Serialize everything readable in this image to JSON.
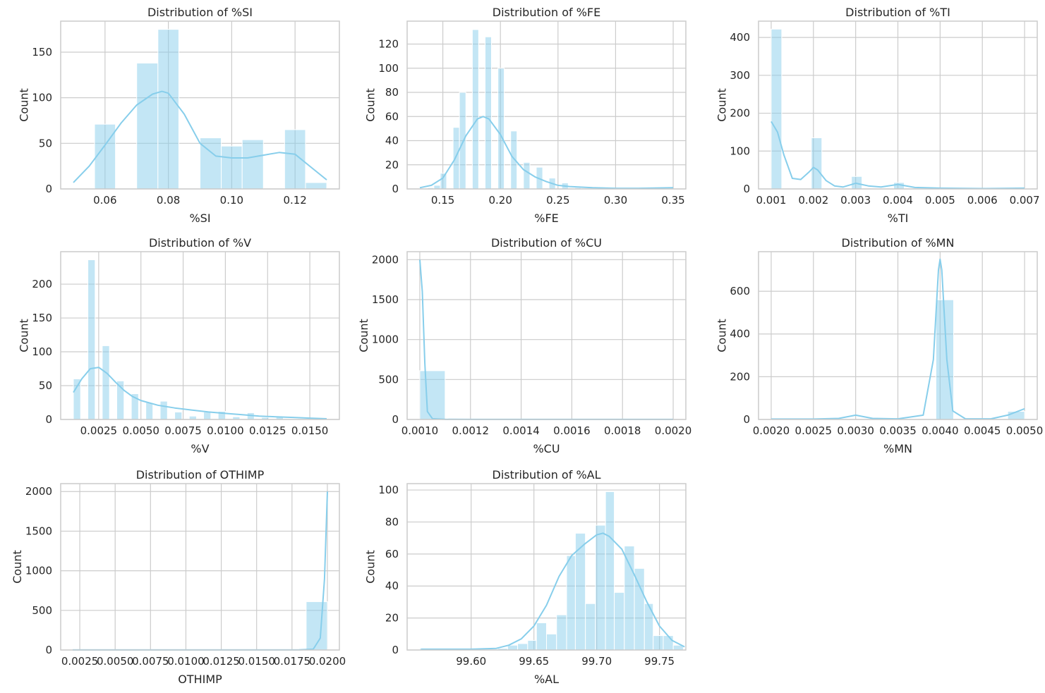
{
  "figure": {
    "bar_color": "#87ceeb",
    "bar_opacity": 0.5,
    "kde_color": "#87ceeb",
    "grid_color": "#cccccc",
    "text_color": "#262626",
    "grid": true
  },
  "chart_data": [
    {
      "type": "bar",
      "title": "Distribution of %SI",
      "xlabel": "%SI",
      "ylabel": "Count",
      "xlim": [
        0.046,
        0.134
      ],
      "ylim": [
        0,
        184
      ],
      "xticks": [
        0.06,
        0.08,
        0.1,
        0.12
      ],
      "xtick_labels": [
        "0.06",
        "0.08",
        "0.10",
        "0.12"
      ],
      "yticks": [
        0,
        50,
        100,
        150
      ],
      "bins": [
        {
          "x0": 0.0567,
          "x1": 0.0633,
          "count": 71
        },
        {
          "x0": 0.07,
          "x1": 0.0767,
          "count": 138
        },
        {
          "x0": 0.0767,
          "x1": 0.0833,
          "count": 175
        },
        {
          "x0": 0.09,
          "x1": 0.0967,
          "count": 56
        },
        {
          "x0": 0.0967,
          "x1": 0.1033,
          "count": 47
        },
        {
          "x0": 0.1033,
          "x1": 0.11,
          "count": 54
        },
        {
          "x0": 0.1167,
          "x1": 0.1233,
          "count": 65
        },
        {
          "x0": 0.1233,
          "x1": 0.13,
          "count": 7
        }
      ],
      "kde": {
        "x": [
          0.05,
          0.055,
          0.06,
          0.065,
          0.07,
          0.075,
          0.078,
          0.08,
          0.085,
          0.09,
          0.095,
          0.1,
          0.105,
          0.11,
          0.115,
          0.12,
          0.125,
          0.13
        ],
        "y": [
          7,
          25,
          48,
          72,
          92,
          104,
          107,
          105,
          82,
          50,
          36,
          34,
          34,
          37,
          40,
          38,
          24,
          10
        ]
      }
    },
    {
      "type": "bar",
      "title": "Distribution of %FE",
      "xlabel": "%FE",
      "ylabel": "Count",
      "xlim": [
        0.119,
        0.361
      ],
      "ylim": [
        0,
        139
      ],
      "xticks": [
        0.15,
        0.2,
        0.25,
        0.3,
        0.35
      ],
      "xtick_labels": [
        "0.15",
        "0.20",
        "0.25",
        "0.30",
        "0.35"
      ],
      "yticks": [
        0,
        20,
        40,
        60,
        80,
        100,
        120
      ],
      "bins": [
        {
          "x0": 0.1367,
          "x1": 0.1422,
          "count": 1
        },
        {
          "x0": 0.1422,
          "x1": 0.1478,
          "count": 3
        },
        {
          "x0": 0.1478,
          "x1": 0.1533,
          "count": 13
        },
        {
          "x0": 0.1589,
          "x1": 0.1644,
          "count": 51
        },
        {
          "x0": 0.1644,
          "x1": 0.17,
          "count": 80
        },
        {
          "x0": 0.1756,
          "x1": 0.1811,
          "count": 132
        },
        {
          "x0": 0.1867,
          "x1": 0.1922,
          "count": 126
        },
        {
          "x0": 0.1978,
          "x1": 0.2033,
          "count": 100
        },
        {
          "x0": 0.2089,
          "x1": 0.2144,
          "count": 48
        },
        {
          "x0": 0.22,
          "x1": 0.2256,
          "count": 22
        },
        {
          "x0": 0.2311,
          "x1": 0.2367,
          "count": 18
        },
        {
          "x0": 0.2422,
          "x1": 0.2478,
          "count": 9
        },
        {
          "x0": 0.2533,
          "x1": 0.2589,
          "count": 5
        },
        {
          "x0": 0.2644,
          "x1": 0.27,
          "count": 1
        }
      ],
      "kde": {
        "x": [
          0.13,
          0.14,
          0.15,
          0.16,
          0.17,
          0.18,
          0.185,
          0.19,
          0.2,
          0.21,
          0.22,
          0.23,
          0.24,
          0.25,
          0.26,
          0.28,
          0.3,
          0.32,
          0.35
        ],
        "y": [
          1,
          3,
          9,
          24,
          44,
          58,
          60,
          58,
          45,
          27,
          16,
          10,
          6,
          3,
          2,
          1,
          0.5,
          0.5,
          1
        ]
      }
    },
    {
      "type": "bar",
      "title": "Distribution of %TI",
      "xlabel": "%TI",
      "ylabel": "Count",
      "xlim": [
        0.0007,
        0.0073
      ],
      "ylim": [
        0,
        443
      ],
      "xticks": [
        0.001,
        0.002,
        0.003,
        0.004,
        0.005,
        0.006,
        0.007
      ],
      "xtick_labels": [
        "0.001",
        "0.002",
        "0.003",
        "0.004",
        "0.005",
        "0.006",
        "0.007"
      ],
      "yticks": [
        0,
        100,
        200,
        300,
        400
      ],
      "bins": [
        {
          "x0": 0.001,
          "x1": 0.00125,
          "count": 422
        },
        {
          "x0": 0.00195,
          "x1": 0.0022,
          "count": 135
        },
        {
          "x0": 0.0029,
          "x1": 0.00315,
          "count": 33
        },
        {
          "x0": 0.0039,
          "x1": 0.00415,
          "count": 17
        },
        {
          "x0": 0.0069,
          "x1": 0.00715,
          "count": 1
        }
      ],
      "kde": {
        "x": [
          0.001,
          0.00115,
          0.0013,
          0.0015,
          0.0017,
          0.0019,
          0.002,
          0.0021,
          0.0023,
          0.0025,
          0.0027,
          0.003,
          0.0033,
          0.0036,
          0.004,
          0.0044,
          0.005,
          0.006,
          0.007
        ],
        "y": [
          178,
          150,
          90,
          28,
          25,
          45,
          57,
          50,
          22,
          8,
          5,
          15,
          8,
          5,
          12,
          4,
          2,
          1,
          2
        ]
      }
    },
    {
      "type": "bar",
      "title": "Distribution of %V",
      "xlabel": "%V",
      "ylabel": "Count",
      "xlim": [
        0.00025,
        0.01675
      ],
      "ylim": [
        0,
        248
      ],
      "xticks": [
        0.0025,
        0.005,
        0.0075,
        0.01,
        0.0125,
        0.015
      ],
      "xtick_labels": [
        "0.0025",
        "0.0050",
        "0.0075",
        "0.0100",
        "0.0125",
        "0.0150"
      ],
      "yticks": [
        0,
        50,
        100,
        150,
        200
      ],
      "bins": [
        {
          "x0": 0.001,
          "x1": 0.00143,
          "count": 60
        },
        {
          "x0": 0.00186,
          "x1": 0.00229,
          "count": 236
        },
        {
          "x0": 0.00271,
          "x1": 0.00314,
          "count": 109
        },
        {
          "x0": 0.00357,
          "x1": 0.004,
          "count": 57
        },
        {
          "x0": 0.00443,
          "x1": 0.00486,
          "count": 38
        },
        {
          "x0": 0.00529,
          "x1": 0.00571,
          "count": 25
        },
        {
          "x0": 0.00614,
          "x1": 0.00657,
          "count": 27
        },
        {
          "x0": 0.007,
          "x1": 0.00743,
          "count": 11
        },
        {
          "x0": 0.00786,
          "x1": 0.00829,
          "count": 5
        },
        {
          "x0": 0.00871,
          "x1": 0.00914,
          "count": 11
        },
        {
          "x0": 0.00957,
          "x1": 0.01,
          "count": 12
        },
        {
          "x0": 0.01043,
          "x1": 0.01086,
          "count": 4
        },
        {
          "x0": 0.01129,
          "x1": 0.01171,
          "count": 10
        },
        {
          "x0": 0.01214,
          "x1": 0.01257,
          "count": 3
        },
        {
          "x0": 0.013,
          "x1": 0.01343,
          "count": 4
        },
        {
          "x0": 0.01386,
          "x1": 0.01429,
          "count": 1
        },
        {
          "x0": 0.01557,
          "x1": 0.016,
          "count": 1
        }
      ],
      "kde": {
        "x": [
          0.001,
          0.0015,
          0.002,
          0.0025,
          0.003,
          0.0035,
          0.004,
          0.0045,
          0.005,
          0.006,
          0.007,
          0.008,
          0.009,
          0.01,
          0.011,
          0.012,
          0.013,
          0.014,
          0.015,
          0.016
        ],
        "y": [
          40,
          60,
          75,
          77,
          68,
          55,
          43,
          34,
          28,
          21,
          17,
          14,
          11,
          9,
          7,
          5,
          4,
          3,
          2,
          1
        ]
      }
    },
    {
      "type": "bar",
      "title": "Distribution of %CU",
      "xlabel": "%CU",
      "ylabel": "Count",
      "xlim": [
        0.00095,
        0.00205
      ],
      "ylim": [
        0,
        2100
      ],
      "xticks": [
        0.001,
        0.0012,
        0.0014,
        0.0016,
        0.0018,
        0.002
      ],
      "xtick_labels": [
        "0.0010",
        "0.0012",
        "0.0014",
        "0.0016",
        "0.0018",
        "0.0020"
      ],
      "yticks": [
        0,
        500,
        1000,
        1500,
        2000
      ],
      "bins": [
        {
          "x0": 0.001,
          "x1": 0.0011,
          "count": 610
        },
        {
          "x0": 0.0019,
          "x1": 0.002,
          "count": 1
        }
      ],
      "kde": {
        "x": [
          0.001,
          0.00101,
          0.00102,
          0.00103,
          0.00105,
          0.0011,
          0.0012,
          0.0015,
          0.0018,
          0.002
        ],
        "y": [
          2000,
          1600,
          700,
          100,
          10,
          2,
          1,
          1,
          1,
          1
        ]
      }
    },
    {
      "type": "bar",
      "title": "Distribution of %MN",
      "xlabel": "%MN",
      "ylabel": "Count",
      "xlim": [
        0.00185,
        0.00515
      ],
      "ylim": [
        0,
        785
      ],
      "xticks": [
        0.002,
        0.0025,
        0.003,
        0.0035,
        0.004,
        0.0045,
        0.005
      ],
      "xtick_labels": [
        "0.0020",
        "0.0025",
        "0.0030",
        "0.0035",
        "0.0040",
        "0.0045",
        "0.0050"
      ],
      "yticks": [
        0,
        200,
        400,
        600
      ],
      "bins": [
        {
          "x0": 0.00395,
          "x1": 0.00416,
          "count": 560
        },
        {
          "x0": 0.0048,
          "x1": 0.005,
          "count": 38
        }
      ],
      "kde": {
        "x": [
          0.002,
          0.0025,
          0.0028,
          0.003,
          0.0032,
          0.0035,
          0.0038,
          0.00392,
          0.00398,
          0.004,
          0.00402,
          0.00408,
          0.00415,
          0.0043,
          0.0046,
          0.0048,
          0.005
        ],
        "y": [
          2,
          2,
          5,
          20,
          5,
          3,
          20,
          280,
          700,
          750,
          700,
          280,
          40,
          3,
          3,
          20,
          50
        ]
      }
    },
    {
      "type": "bar",
      "title": "Distribution of OTHIMP",
      "xlabel": "OTHIMP",
      "ylabel": "Count",
      "xlim": [
        0.00115,
        0.02085
      ],
      "ylim": [
        0,
        2100
      ],
      "xticks": [
        0.0025,
        0.005,
        0.0075,
        0.01,
        0.0125,
        0.015,
        0.0175,
        0.02
      ],
      "xtick_labels": [
        "0.0025",
        "0.0050",
        "0.0075",
        "0.0100",
        "0.0125",
        "0.0150",
        "0.0175",
        "0.0200"
      ],
      "yticks": [
        0,
        500,
        1000,
        1500,
        2000
      ],
      "bins": [
        {
          "x0": 0.002,
          "x1": 0.0035,
          "count": 2
        },
        {
          "x0": 0.0185,
          "x1": 0.02,
          "count": 610
        }
      ],
      "kde": {
        "x": [
          0.002,
          0.005,
          0.01,
          0.015,
          0.018,
          0.019,
          0.0195,
          0.0198,
          0.02
        ],
        "y": [
          1,
          1,
          1,
          1,
          2,
          10,
          150,
          900,
          2000
        ]
      }
    },
    {
      "type": "bar",
      "title": "Distribution of %AL",
      "xlabel": "%AL",
      "ylabel": "Count",
      "xlim": [
        99.549,
        99.771
      ],
      "ylim": [
        0,
        104
      ],
      "xticks": [
        99.6,
        99.65,
        99.7,
        99.75
      ],
      "xtick_labels": [
        "99.60",
        "99.65",
        "99.70",
        "99.75"
      ],
      "yticks": [
        0,
        20,
        40,
        60,
        80,
        100
      ],
      "bins": [
        {
          "x0": 99.559,
          "x1": 99.567,
          "count": 1
        },
        {
          "x0": 99.582,
          "x1": 99.59,
          "count": 1
        },
        {
          "x0": 99.621,
          "x1": 99.629,
          "count": 1
        },
        {
          "x0": 99.629,
          "x1": 99.637,
          "count": 3
        },
        {
          "x0": 99.637,
          "x1": 99.645,
          "count": 4
        },
        {
          "x0": 99.645,
          "x1": 99.652,
          "count": 6
        },
        {
          "x0": 99.652,
          "x1": 99.66,
          "count": 17
        },
        {
          "x0": 99.66,
          "x1": 99.668,
          "count": 10
        },
        {
          "x0": 99.668,
          "x1": 99.676,
          "count": 22
        },
        {
          "x0": 99.676,
          "x1": 99.683,
          "count": 59
        },
        {
          "x0": 99.683,
          "x1": 99.691,
          "count": 73
        },
        {
          "x0": 99.691,
          "x1": 99.699,
          "count": 29
        },
        {
          "x0": 99.699,
          "x1": 99.707,
          "count": 78
        },
        {
          "x0": 99.707,
          "x1": 99.714,
          "count": 99
        },
        {
          "x0": 99.714,
          "x1": 99.722,
          "count": 36
        },
        {
          "x0": 99.722,
          "x1": 99.73,
          "count": 65
        },
        {
          "x0": 99.73,
          "x1": 99.738,
          "count": 51
        },
        {
          "x0": 99.738,
          "x1": 99.745,
          "count": 29
        },
        {
          "x0": 99.745,
          "x1": 99.753,
          "count": 9
        },
        {
          "x0": 99.753,
          "x1": 99.761,
          "count": 9
        },
        {
          "x0": 99.761,
          "x1": 99.769,
          "count": 3
        }
      ],
      "kde": {
        "x": [
          99.56,
          99.58,
          99.6,
          99.62,
          99.63,
          99.64,
          99.65,
          99.66,
          99.67,
          99.68,
          99.69,
          99.7,
          99.705,
          99.71,
          99.72,
          99.73,
          99.74,
          99.75,
          99.76,
          99.77
        ],
        "y": [
          0.5,
          0.5,
          0.5,
          1,
          3,
          7,
          15,
          28,
          46,
          59,
          66,
          72,
          73,
          71,
          63,
          47,
          30,
          15,
          6,
          2
        ]
      }
    }
  ]
}
